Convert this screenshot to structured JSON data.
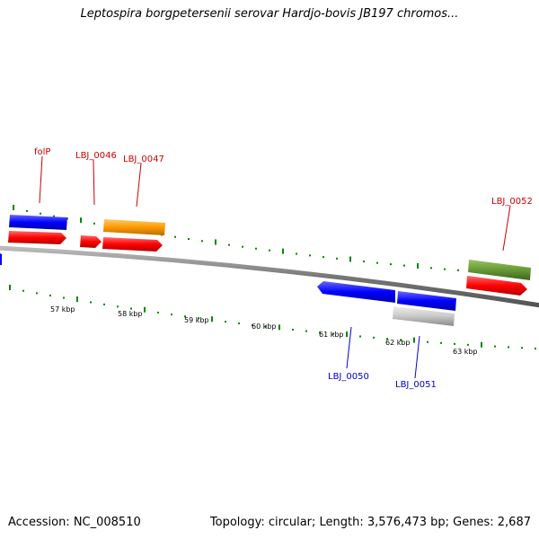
{
  "title": "Leptospira borgpetersenii serovar Hardjo-bovis JB197 chromos...",
  "footer": {
    "accession": "Accession: NC_008510",
    "stats": "Topology: circular; Length: 3,576,473 bp; Genes: 2,687"
  },
  "axis_labels": [
    "57 kbp",
    "58 kbp",
    "59 kbp",
    "60 kbp",
    "61 kbp",
    "62 kbp",
    "63 kbp"
  ],
  "gene_labels": {
    "folP": "folP",
    "LBJ_0046": "LBJ_0046",
    "LBJ_0047": "LBJ_0047",
    "LBJ_0052": "LBJ_0052",
    "LBJ_0050": "LBJ_0050",
    "LBJ_0051": "LBJ_0051"
  },
  "colors": {
    "cds": "#ff0000",
    "blue_feature": "#0000ff",
    "orange_feature": "#ff9900",
    "olive_feature": "#669933",
    "gray_feature": "#c8c8c8",
    "gc_ticks": "#008800",
    "backbone": "#888888",
    "forward_label": "#cc0000",
    "reverse_label": "#0000cc"
  }
}
